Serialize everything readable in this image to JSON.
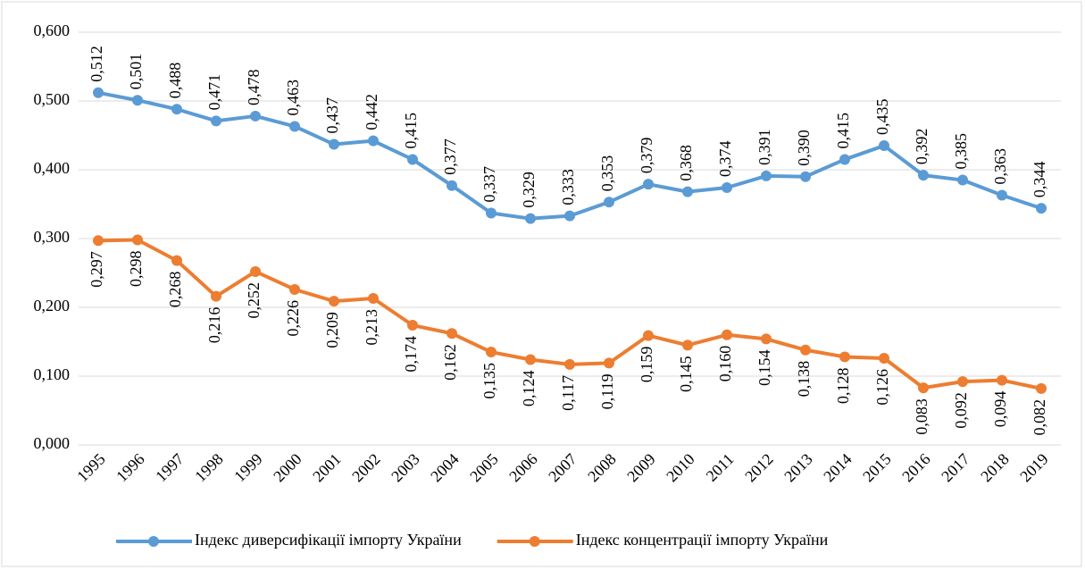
{
  "chart_data": {
    "type": "line",
    "categories": [
      "1995",
      "1996",
      "1997",
      "1998",
      "1999",
      "2000",
      "2001",
      "2002",
      "2003",
      "2004",
      "2005",
      "2006",
      "2007",
      "2008",
      "2009",
      "2010",
      "2011",
      "2012",
      "2013",
      "2014",
      "2015",
      "2016",
      "2017",
      "2018",
      "2019"
    ],
    "series": [
      {
        "name": "Індекс диверсифікації імпорту України",
        "color": "#5b9bd5",
        "label_position": "above",
        "values": [
          0.512,
          0.501,
          0.488,
          0.471,
          0.478,
          0.463,
          0.437,
          0.442,
          0.415,
          0.377,
          0.337,
          0.329,
          0.333,
          0.353,
          0.379,
          0.368,
          0.374,
          0.391,
          0.39,
          0.415,
          0.435,
          0.392,
          0.385,
          0.363,
          0.344
        ],
        "value_labels": [
          "0,512",
          "0,501",
          "0,488",
          "0,471",
          "0,478",
          "0,463",
          "0,437",
          "0,442",
          "0,415",
          "0,377",
          "0,337",
          "0,329",
          "0,333",
          "0,353",
          "0,379",
          "0,368",
          "0,374",
          "0,391",
          "0,390",
          "0,415",
          "0,435",
          "0,392",
          "0,385",
          "0,363",
          "0,344"
        ]
      },
      {
        "name": "Індекс концентрації імпорту України",
        "color": "#ed7d31",
        "label_position": "below",
        "values": [
          0.297,
          0.298,
          0.268,
          0.216,
          0.252,
          0.226,
          0.209,
          0.213,
          0.174,
          0.162,
          0.135,
          0.124,
          0.117,
          0.119,
          0.159,
          0.145,
          0.16,
          0.154,
          0.138,
          0.128,
          0.126,
          0.083,
          0.092,
          0.094,
          0.082
        ],
        "value_labels": [
          "0,297",
          "0,298",
          "0,268",
          "0,216",
          "0,252",
          "0,226",
          "0,209",
          "0,213",
          "0,174",
          "0,162",
          "0,135",
          "0,124",
          "0,117",
          "0,119",
          "0,159",
          "0,145",
          "0,160",
          "0,154",
          "0,138",
          "0,128",
          "0,126",
          "0,083",
          "0,092",
          "0,094",
          "0,082"
        ]
      }
    ],
    "ylim": [
      0,
      0.6
    ],
    "yticks": [
      {
        "value": 0,
        "label": "0,000"
      },
      {
        "value": 0.1,
        "label": "0,100"
      },
      {
        "value": 0.2,
        "label": "0,200"
      },
      {
        "value": 0.3,
        "label": "0,300"
      },
      {
        "value": 0.4,
        "label": "0,400"
      },
      {
        "value": 0.5,
        "label": "0,500"
      },
      {
        "value": 0.6,
        "label": "0,600"
      }
    ],
    "grid": true,
    "legend": "bottom"
  }
}
